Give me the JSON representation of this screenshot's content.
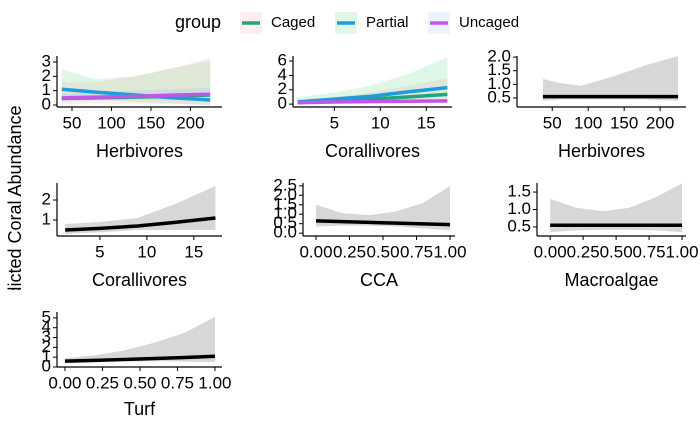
{
  "legend_title": "group",
  "y_label": "Predicted Coral Abundance",
  "chart_data": [
    {
      "type": "line",
      "x_label": "Herbivores",
      "xlim": [
        31,
        240
      ],
      "ylim": [
        -0.14,
        3.42
      ],
      "xticks": [
        50,
        100,
        150,
        200
      ],
      "yticks": [
        0,
        1,
        2,
        3
      ],
      "x": [
        37,
        80,
        130,
        180,
        225
      ],
      "series": [
        {
          "name": "Caged",
          "color": "#21a67a",
          "ribbon_color": "#f8766d",
          "values": [
            0.45,
            0.5,
            0.55,
            0.62,
            0.7
          ],
          "lower": [
            0.05,
            0.1,
            0.1,
            0.05,
            0
          ],
          "upper": [
            1.6,
            1.6,
            2.0,
            2.6,
            3.3
          ]
        },
        {
          "name": "Partial",
          "color": "#1f9be0",
          "ribbon_color": "#00ba38",
          "values": [
            1.1,
            0.9,
            0.7,
            0.5,
            0.35
          ],
          "lower": [
            0.5,
            0.4,
            0.2,
            0.1,
            0
          ],
          "upper": [
            2.5,
            1.8,
            2.0,
            2.6,
            3.1
          ]
        },
        {
          "name": "Uncaged",
          "color": "#c455e8",
          "ribbon_color": "#619cff",
          "values": [
            0.5,
            0.55,
            0.6,
            0.7,
            0.75
          ],
          "lower": [
            0.2,
            0.3,
            0.35,
            0.35,
            0.35
          ],
          "upper": [
            0.8,
            0.9,
            1.0,
            1.1,
            1.2
          ]
        }
      ]
    },
    {
      "type": "line",
      "x_label": "Corallivores",
      "xlim": [
        0.5,
        17.8
      ],
      "ylim": [
        -0.4,
        6.7
      ],
      "xticks": [
        5,
        10,
        15
      ],
      "yticks": [
        0,
        2,
        4,
        6
      ],
      "x": [
        1,
        5,
        9,
        13,
        17.3
      ],
      "series": [
        {
          "name": "Caged",
          "color": "#21a67a",
          "ribbon_color": "#f8766d",
          "values": [
            0.3,
            0.45,
            0.7,
            1.0,
            1.35
          ],
          "lower": [
            0.1,
            0.2,
            0.3,
            0.4,
            0.5
          ],
          "upper": [
            0.7,
            1.0,
            1.6,
            2.6,
            3.6
          ]
        },
        {
          "name": "Partial",
          "color": "#1f9be0",
          "ribbon_color": "#00ba38",
          "values": [
            0.3,
            0.7,
            1.1,
            1.7,
            2.3
          ],
          "lower": [
            0.1,
            0.4,
            0.6,
            0.9,
            1.1
          ],
          "upper": [
            1.0,
            1.6,
            2.6,
            4.2,
            6.5
          ]
        },
        {
          "name": "Uncaged",
          "color": "#c455e8",
          "ribbon_color": "#619cff",
          "values": [
            0.2,
            0.3,
            0.35,
            0.4,
            0.45
          ],
          "lower": [
            0.05,
            0.1,
            0.1,
            0.1,
            0.1
          ],
          "upper": [
            0.5,
            0.7,
            0.9,
            1.0,
            1.2
          ]
        }
      ]
    },
    {
      "type": "line",
      "x_label": "Herbivores",
      "xlim": [
        1,
        236
      ],
      "ylim": [
        0.17,
        2.04
      ],
      "xticks": [
        50,
        100,
        150,
        200
      ],
      "yticks": [
        0.5,
        {
          "value": 1,
          "label": "1.0"
        },
        1.5,
        {
          "value": 2,
          "label": "2.0"
        }
      ],
      "x": [
        37,
        60,
        90,
        130,
        180,
        225
      ],
      "series": [
        {
          "color": "#000000",
          "ribbon_color": "#bdbdbd",
          "values": [
            0.55,
            0.55,
            0.55,
            0.55,
            0.55,
            0.55
          ],
          "lower": [
            0.4,
            0.45,
            0.45,
            0.45,
            0.45,
            0.4
          ],
          "upper": [
            1.2,
            1.05,
            0.95,
            1.25,
            1.7,
            2.04
          ]
        }
      ]
    },
    {
      "type": "line",
      "x_label": "Corallivores",
      "xlim": [
        0.43,
        18
      ],
      "ylim": [
        0.2,
        2.85
      ],
      "xticks": [
        5,
        10,
        15
      ],
      "yticks": [
        1,
        2
      ],
      "x": [
        1.3,
        5,
        9,
        13,
        17.3
      ],
      "series": [
        {
          "color": "#000000",
          "ribbon_color": "#bdbdbd",
          "values": [
            0.5,
            0.58,
            0.7,
            0.88,
            1.1
          ],
          "lower": [
            0.3,
            0.38,
            0.5,
            0.5,
            0.5
          ],
          "upper": [
            0.8,
            0.9,
            1.1,
            1.8,
            2.7
          ]
        }
      ]
    },
    {
      "type": "line",
      "x_label": "CCA",
      "xlim": [
        -0.097,
        1.037
      ],
      "ylim": [
        -0.15,
        2.65
      ],
      "xticks": [
        {
          "value": 0,
          "label": "0.00"
        },
        0.25,
        {
          "value": 0.5,
          "label": "0.50"
        },
        0.75,
        {
          "value": 1,
          "label": "1.00"
        }
      ],
      "yticks": [
        {
          "value": 0,
          "label": "0.0"
        },
        0.5,
        {
          "value": 1,
          "label": "1.0"
        },
        1.5,
        {
          "value": 2,
          "label": "2.0"
        },
        2.5
      ],
      "x": [
        0,
        0.2,
        0.4,
        0.6,
        0.8,
        1
      ],
      "series": [
        {
          "color": "#000000",
          "ribbon_color": "#bdbdbd",
          "values": [
            0.65,
            0.61,
            0.57,
            0.53,
            0.49,
            0.45
          ],
          "lower": [
            0.35,
            0.4,
            0.4,
            0.35,
            0.25,
            0.15
          ],
          "upper": [
            1.5,
            1.05,
            0.95,
            1.15,
            1.6,
            2.5
          ]
        }
      ]
    },
    {
      "type": "line",
      "x_label": "Macroalgae",
      "xlim": [
        -0.1,
        1.03
      ],
      "ylim": [
        0.24,
        1.76
      ],
      "xticks": [
        {
          "value": 0,
          "label": "0.00"
        },
        0.25,
        {
          "value": 0.5,
          "label": "0.50"
        },
        0.75,
        {
          "value": 1,
          "label": "1.00"
        }
      ],
      "yticks": [
        0.5,
        {
          "value": 1,
          "label": "1.0"
        },
        1.5
      ],
      "x": [
        0,
        0.2,
        0.4,
        0.6,
        0.8,
        1
      ],
      "series": [
        {
          "color": "#000000",
          "ribbon_color": "#bdbdbd",
          "values": [
            0.55,
            0.55,
            0.55,
            0.55,
            0.55,
            0.55
          ],
          "lower": [
            0.35,
            0.4,
            0.42,
            0.42,
            0.4,
            0.35
          ],
          "upper": [
            1.3,
            1.05,
            0.95,
            1.05,
            1.35,
            1.75
          ]
        }
      ]
    },
    {
      "type": "line",
      "x_label": "Turf",
      "xlim": [
        -0.053,
        1.047
      ],
      "ylim": [
        0,
        5.6
      ],
      "xticks": [
        {
          "value": 0,
          "label": "0.00"
        },
        0.25,
        {
          "value": 0.5,
          "label": "0.50"
        },
        0.75,
        {
          "value": 1,
          "label": "1.00"
        }
      ],
      "yticks": [
        0,
        1,
        2,
        3,
        4,
        5
      ],
      "x": [
        0,
        0.2,
        0.4,
        0.6,
        0.8,
        1
      ],
      "series": [
        {
          "color": "#000000",
          "ribbon_color": "#bdbdbd",
          "values": [
            0.6,
            0.68,
            0.77,
            0.87,
            0.97,
            1.1
          ],
          "lower": [
            0.4,
            0.5,
            0.55,
            0.6,
            0.55,
            0.5
          ],
          "upper": [
            0.9,
            1.2,
            1.7,
            2.5,
            3.5,
            5.1
          ]
        }
      ]
    }
  ]
}
